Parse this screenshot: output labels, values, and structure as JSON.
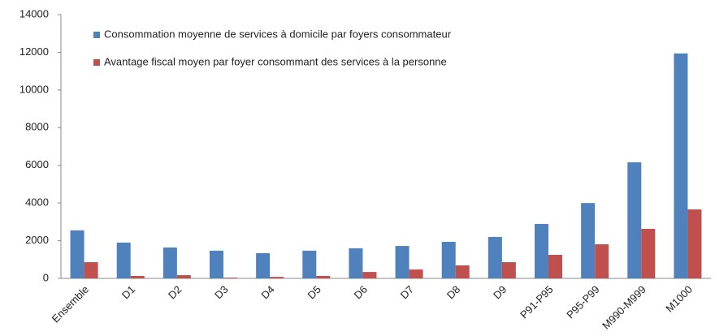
{
  "chart_data": {
    "type": "bar",
    "categories": [
      "Ensemble",
      "D1",
      "D2",
      "D3",
      "D4",
      "D5",
      "D6",
      "D7",
      "D8",
      "D9",
      "P91-P95",
      "P95-P99",
      "M990-M999",
      "M1000"
    ],
    "series": [
      {
        "name": "Consommation moyenne de services à domicile par foyers consommateur",
        "color": "#4f81bd",
        "values": [
          2550,
          1900,
          1640,
          1470,
          1340,
          1470,
          1600,
          1720,
          1940,
          2200,
          2890,
          4000,
          6160,
          11940
        ]
      },
      {
        "name": "Avantage fiscal moyen par foyer consommant des services à la personne",
        "color": "#c0504d",
        "values": [
          860,
          130,
          170,
          40,
          80,
          130,
          340,
          470,
          690,
          860,
          1250,
          1810,
          2630,
          3660
        ]
      }
    ],
    "ylim": [
      0,
      14000
    ],
    "yticks": [
      0,
      2000,
      4000,
      6000,
      8000,
      10000,
      12000,
      14000
    ],
    "legend": "top-left"
  }
}
